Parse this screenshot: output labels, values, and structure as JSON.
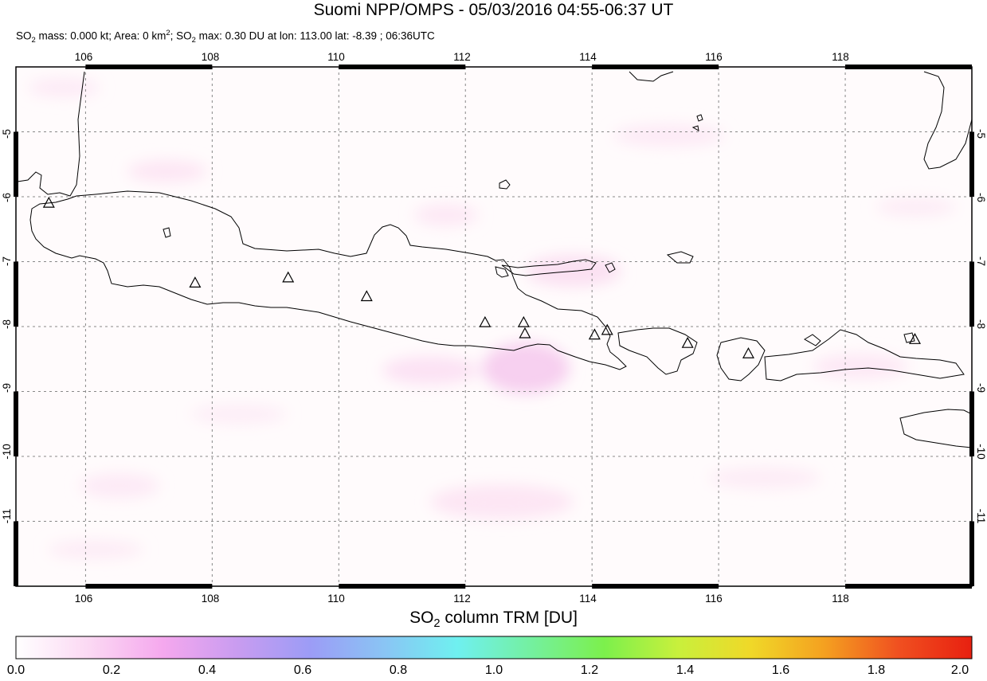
{
  "title": "Suomi NPP/OMPS - 05/03/2016 04:55-06:37 UT",
  "subtitle": {
    "p1": "SO",
    "s1": "2",
    "p2": " mass: 0.000 kt; Area: 0 km",
    "s2": "2",
    "p3": "; SO",
    "s3": "2",
    "p4": " max: 0.30 DU at lon: 113.00 lat: -8.39 ; 06:36UTC"
  },
  "map": {
    "lon_ticks": [
      "106",
      "108",
      "110",
      "112",
      "114",
      "116",
      "118"
    ],
    "lat_ticks": [
      "-5",
      "-6",
      "-7",
      "-8",
      "-9",
      "-10",
      "-11"
    ],
    "lon_range": [
      104.9,
      120.0
    ],
    "lat_range": [
      -12.0,
      -4.0
    ],
    "grid": true,
    "volcano_marker": "triangle-outline"
  },
  "colorbar": {
    "title_main": "SO",
    "title_sub": "2",
    "title_rest": " column TRM [DU]",
    "ticks": [
      "0.0",
      "0.2",
      "0.4",
      "0.6",
      "0.8",
      "1.0",
      "1.2",
      "1.4",
      "1.6",
      "1.8",
      "2.0"
    ],
    "colors": [
      "#ffffff",
      "#fbd8f3",
      "#f5a8ee",
      "#c99cf0",
      "#9c9cf6",
      "#8ac4f4",
      "#6ff0f0",
      "#74f0a0",
      "#7cf04c",
      "#c8f03c",
      "#f0d828",
      "#f4a020",
      "#f05020",
      "#e82010"
    ]
  }
}
